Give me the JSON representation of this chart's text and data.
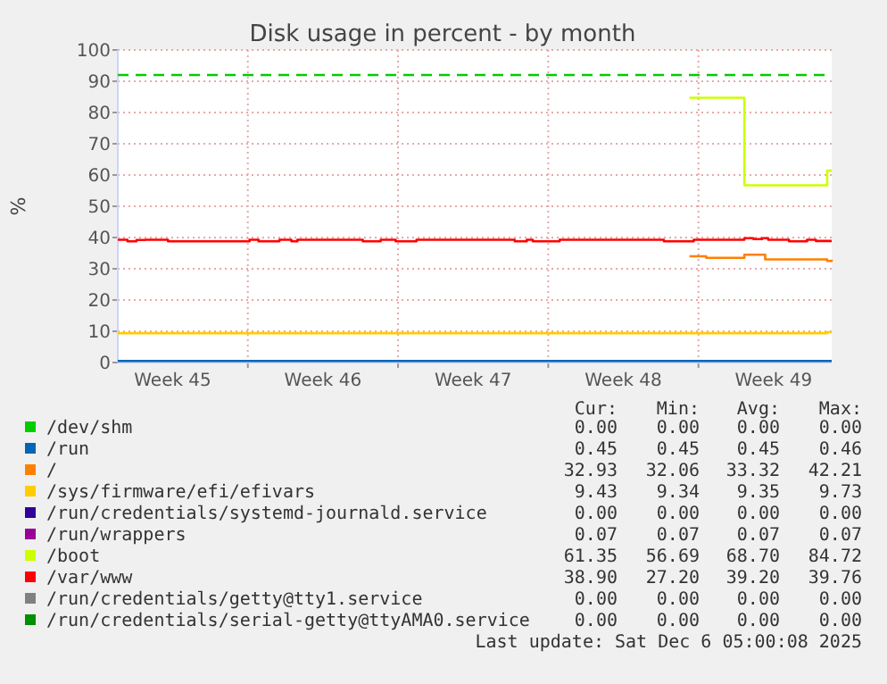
{
  "chart_data": {
    "type": "step",
    "title": "Disk usage in percent - by month",
    "ylabel": "%",
    "xlim": [
      "2025-11-02T22:34",
      "2025-12-06T05:00"
    ],
    "ylim": [
      0,
      100
    ],
    "yticks": [
      0,
      10,
      20,
      30,
      40,
      50,
      60,
      70,
      80,
      90,
      100
    ],
    "xticks": [
      {
        "value": "2025-11-05T12:00",
        "label": "Week 45"
      },
      {
        "value": "2025-11-09",
        "label": null
      },
      {
        "value": "2025-11-12T12:00",
        "label": "Week 46"
      },
      {
        "value": "2025-11-16",
        "label": null
      },
      {
        "value": "2025-11-19T12:00",
        "label": "Week 47"
      },
      {
        "value": "2025-11-23",
        "label": null
      },
      {
        "value": "2025-11-26T12:00",
        "label": "Week 48"
      },
      {
        "value": "2025-11-30",
        "label": null
      },
      {
        "value": "2025-12-03T12:00",
        "label": "Week 49"
      }
    ],
    "grid": true,
    "legend": "bottom",
    "line_style": "solid",
    "ref_lines": [
      {
        "axis": "y",
        "value": 92,
        "color": "#00cc00",
        "line_style": "dashed"
      }
    ],
    "series": [
      {
        "name": "/dev/shm",
        "color": "#00cc00",
        "values": [
          null
        ]
      },
      {
        "name": "/run",
        "color": "#0066b3",
        "x": [
          "2025-11-02T22:34",
          "2025-12-06T05:00"
        ],
        "values": [
          0.5,
          0.5
        ]
      },
      {
        "name": "/",
        "color": "#ff8000",
        "x": [
          "2025-11-29T13:55",
          "2025-11-30T08:38",
          "2025-12-02T03:22",
          "2025-12-03T02:38",
          "2025-12-06T00:00",
          "2025-12-06T05:00"
        ],
        "values": [
          34,
          33.5,
          34.5,
          33,
          32.5,
          32.9
        ]
      },
      {
        "name": "/sys/firmware/efi/efivars",
        "color": "#ffcc00",
        "x": [
          "2025-11-02T22:34",
          "2025-12-06T00:00",
          "2025-12-06T05:00"
        ],
        "values": [
          9.4,
          9.7,
          9.7
        ]
      },
      {
        "name": "/run/credentials/systemd-journald.service",
        "color": "#330099",
        "values": [
          null
        ]
      },
      {
        "name": "/run/wrappers",
        "color": "#990099",
        "values": [
          null
        ]
      },
      {
        "name": "/boot",
        "color": "#ccff00",
        "x": [
          "2025-11-29T13:55",
          "2025-12-02T03:22",
          "2025-12-06T00:00",
          "2025-12-06T05:00"
        ],
        "values": [
          84.7,
          56.7,
          61.4,
          61.4
        ]
      },
      {
        "name": "/var/www",
        "color": "#ff0000",
        "x": [
          "2025-11-02T22:34",
          "2025-11-03T09:22",
          "2025-11-03T19:26",
          "2025-11-04T05:17",
          "2025-11-05T06:43",
          "2025-11-09T01:55",
          "2025-11-09T12:00",
          "2025-11-10T11:17",
          "2025-11-11T00:43",
          "2025-11-11T07:26",
          "2025-11-14T08:38",
          "2025-11-15T04:34",
          "2025-11-15T21:22",
          "2025-11-16T20:38",
          "2025-11-21T10:34",
          "2025-11-22T00:00",
          "2025-11-22T06:43",
          "2025-11-23T12:43",
          "2025-11-28T09:22",
          "2025-11-29T18:43",
          "2025-12-02T03:22",
          "2025-12-02T13:26",
          "2025-12-02T23:17",
          "2025-12-03T06:00",
          "2025-12-04T05:17",
          "2025-12-05T01:26",
          "2025-12-05T11:17",
          "2025-12-06T05:00"
        ],
        "values": [
          39.3,
          38.8,
          39.2,
          39.3,
          38.8,
          39.3,
          38.8,
          39.3,
          38.8,
          39.3,
          38.8,
          39.3,
          38.8,
          39.3,
          38.8,
          39.3,
          38.8,
          39.3,
          38.8,
          39.3,
          39.8,
          39.5,
          39.8,
          39.3,
          38.8,
          39.3,
          38.9,
          38.9
        ]
      },
      {
        "name": "/run/credentials/getty@tty1.service",
        "color": "#808080",
        "values": [
          null
        ]
      },
      {
        "name": "/run/credentials/serial-getty@ttyAMA0.service",
        "color": "#008f00",
        "values": [
          null
        ]
      }
    ],
    "annotations": [
      "Cur:",
      "Min:",
      "Avg:",
      "Max:",
      "0.00",
      "0.00",
      "0.00",
      "0.00",
      "0.45",
      "0.45",
      "0.45",
      "0.46",
      "32.93",
      "32.06",
      "33.32",
      "42.21",
      "9.43",
      "9.34",
      "9.35",
      "9.73",
      "0.00",
      "0.00",
      "0.00",
      "0.00",
      "0.07",
      "0.07",
      "0.07",
      "0.07",
      "61.35",
      "56.69",
      "68.70",
      "84.72",
      "38.90",
      "27.20",
      "39.20",
      "39.76",
      "0.00",
      "0.00",
      "0.00",
      "0.00",
      "0.00",
      "0.00",
      "0.00",
      "0.00",
      "Last update: Sat Dec  6 05:00:08 2025"
    ]
  }
}
